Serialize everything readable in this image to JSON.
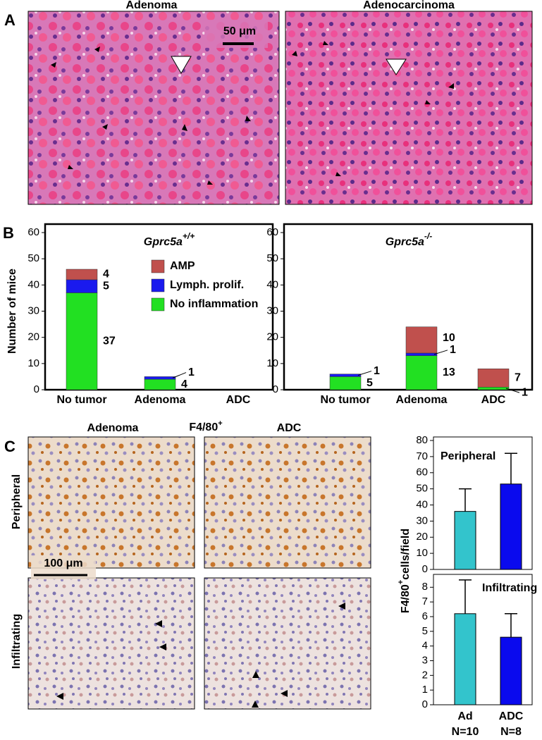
{
  "panels": {
    "a": {
      "letter": "A",
      "left_title": "Adenoma",
      "right_title": "Adenocarcinoma",
      "scale": "50 μm"
    },
    "b": {
      "letter": "B"
    },
    "c": {
      "letter": "C",
      "left_title": "Adenoma",
      "marker": "F4/80",
      "marker_sup": "+",
      "right_title": "ADC",
      "row1": "Peripheral",
      "row2": "Infiltrating",
      "scale": "100 μm"
    }
  },
  "chart_data": [
    {
      "type": "stacked_bar",
      "title": "Gprc5a",
      "title_sup": "+/+",
      "ylabel": "Number of mice",
      "categories": [
        "No tumor",
        "Adenoma",
        "ADC"
      ],
      "series": [
        {
          "name": "No inflammation",
          "color": "#22e022",
          "values": [
            37,
            4,
            0
          ]
        },
        {
          "name": "Lymph. prolif.",
          "color": "#1a1aee",
          "values": [
            5,
            1,
            0
          ]
        },
        {
          "name": "AMP",
          "color": "#c0504d",
          "values": [
            4,
            0,
            0
          ]
        }
      ],
      "ylim": [
        0,
        60
      ],
      "yticks": [
        0,
        10,
        20,
        30,
        40,
        50,
        60
      ],
      "legend": "upper right"
    },
    {
      "type": "stacked_bar",
      "title": "Gprc5a",
      "title_sup": "-/-",
      "categories": [
        "No tumor",
        "Adenoma",
        "ADC"
      ],
      "series": [
        {
          "name": "No inflammation",
          "color": "#22e022",
          "values": [
            5,
            13,
            1
          ]
        },
        {
          "name": "Lymph. prolif.",
          "color": "#1a1aee",
          "values": [
            1,
            1,
            0
          ]
        },
        {
          "name": "AMP",
          "color": "#c0504d",
          "values": [
            0,
            10,
            7
          ]
        }
      ],
      "ylim": [
        0,
        60
      ],
      "yticks": [
        0,
        10,
        20,
        30,
        40,
        50,
        60
      ]
    },
    {
      "type": "error_bar",
      "annotation": "Peripheral",
      "ylabel": "F4/80",
      "ylabel_sup": "+",
      "ylabel_rest": "cells/field",
      "colors": [
        "#33c4cc",
        "#0a0aee"
      ],
      "values": [
        36,
        53
      ],
      "errors": [
        14,
        19
      ],
      "ylim": [
        0,
        80
      ],
      "yticks": [
        0,
        10,
        20,
        30,
        40,
        50,
        60,
        70,
        80
      ]
    },
    {
      "type": "error_bar",
      "annotation": "Infiltrating",
      "categories": [
        "Ad",
        "ADC"
      ],
      "category_notes": [
        "N=10",
        "N=8"
      ],
      "colors": [
        "#33c4cc",
        "#0a0aee"
      ],
      "values": [
        6.2,
        4.6
      ],
      "errors": [
        2.3,
        1.6
      ],
      "ylim": [
        0,
        8.8
      ],
      "yticks": [
        0,
        1,
        2,
        3,
        4,
        5,
        6,
        7,
        8
      ]
    }
  ]
}
